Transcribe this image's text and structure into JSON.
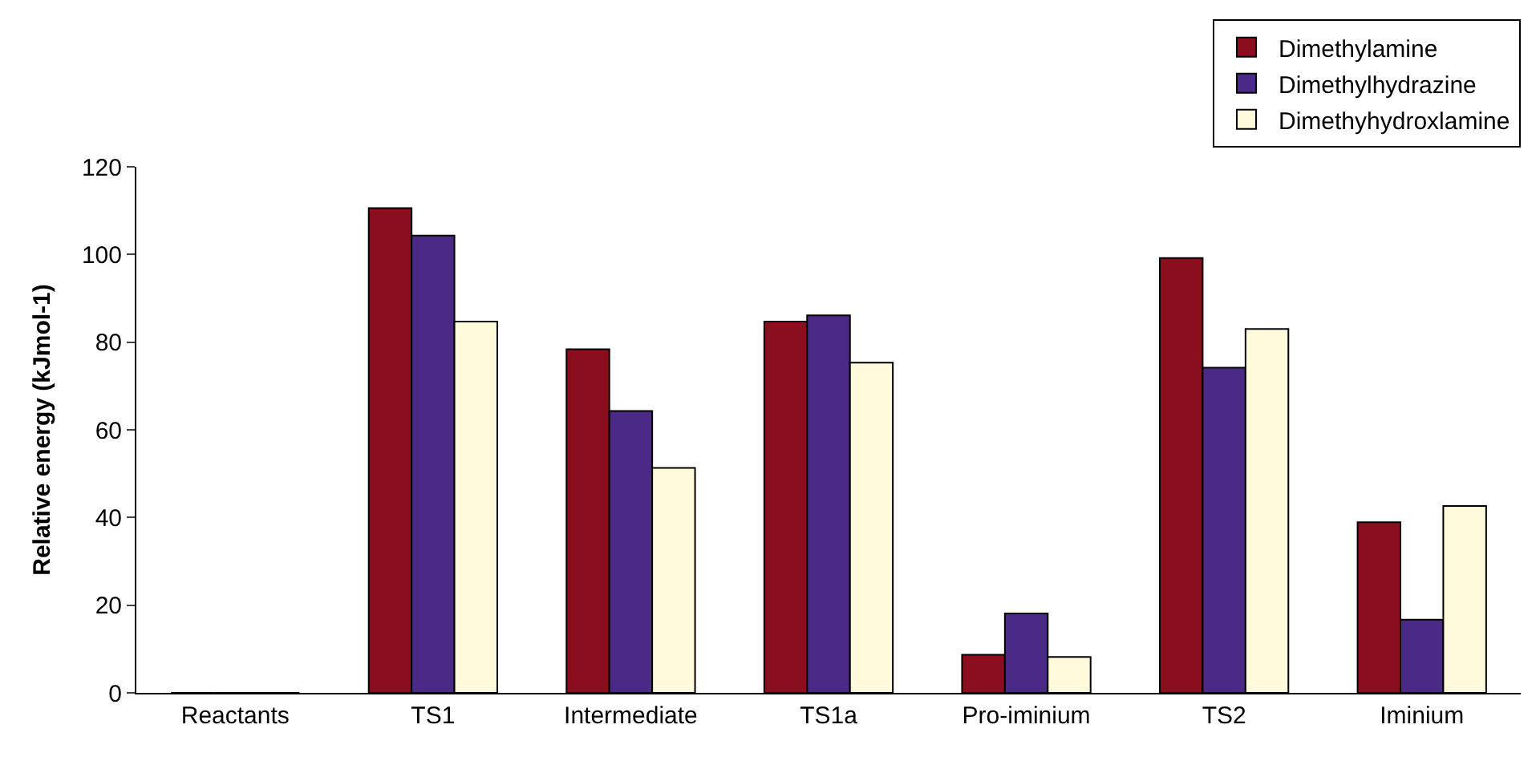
{
  "chart_data": {
    "type": "bar",
    "ylabel": "Relative energy (kJmol-1)",
    "categories": [
      "Reactants",
      "TS1",
      "Intermediate",
      "TS1a",
      "Pro-iminium",
      "TS2",
      "Iminium"
    ],
    "series": [
      {
        "name": "Dimethylamine",
        "color": "#8b0e1e",
        "values": [
          0,
          110.6,
          78.4,
          84.7,
          8.7,
          99.2,
          38.9
        ]
      },
      {
        "name": "Dimethylhydrazine",
        "color": "#4a2a85",
        "values": [
          0,
          104.3,
          64.3,
          86.1,
          18.1,
          74.2,
          16.7
        ]
      },
      {
        "name": "Dimethyhydroxlamine",
        "color": "#fffadc",
        "values": [
          0,
          84.7,
          51.3,
          75.3,
          8.2,
          83.0,
          42.6
        ]
      }
    ],
    "ylim": [
      0,
      120
    ],
    "yticks": [
      0,
      20,
      40,
      60,
      80,
      100,
      120
    ],
    "grid": false,
    "legend": "top right"
  }
}
